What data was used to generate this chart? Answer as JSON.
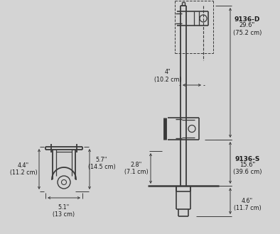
{
  "bg_color": "#d4d4d4",
  "line_color": "#3a3a3a",
  "text_color": "#1a1a1a",
  "annotations": {
    "dim_4in": "4\"\n(10.2 cm)",
    "dim_2p8in": "2.8\"\n(7.1 cm)",
    "dim_4p6in": "4.6\"\n(11.7 cm)",
    "dim_9136D_label": "9136-D",
    "dim_9136D_val": "29.6\"\n(75.2 cm)",
    "dim_9136S_label": "9136-S",
    "dim_9136S_val": "15.6\"\n(39.6 cm)",
    "dim_4p4in": "4.4\"\n(11.2 cm)",
    "dim_5p7in": "5.7\"\n(14.5 cm)",
    "dim_5p1in": "5.1\"\n(13 cm)"
  },
  "layout": {
    "figw": 3.94,
    "figh": 3.3,
    "dpi": 100
  }
}
